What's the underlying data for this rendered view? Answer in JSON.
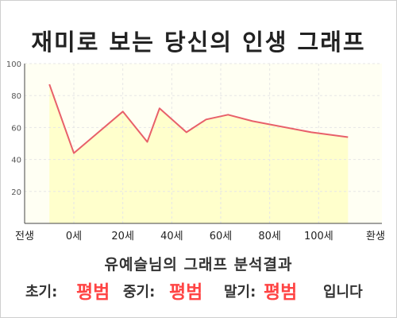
{
  "title": "재미로 보는 당신의 인생 그래프",
  "chart_data": {
    "type": "area",
    "x_labels": [
      "전생",
      "0세",
      "20세",
      "40세",
      "60세",
      "80세",
      "100세",
      "환생"
    ],
    "y_ticks": [
      20,
      40,
      60,
      80,
      100
    ],
    "ylim": [
      0,
      100
    ],
    "grid": true,
    "series": [
      {
        "points": [
          {
            "x": -10,
            "y": 87
          },
          {
            "x": 0,
            "y": 44
          },
          {
            "x": 20,
            "y": 70
          },
          {
            "x": 30,
            "y": 51
          },
          {
            "x": 35,
            "y": 72
          },
          {
            "x": 46,
            "y": 57
          },
          {
            "x": 54,
            "y": 65
          },
          {
            "x": 63,
            "y": 68
          },
          {
            "x": 73,
            "y": 64
          },
          {
            "x": 97,
            "y": 57
          },
          {
            "x": 112,
            "y": 54
          }
        ]
      }
    ],
    "colors": {
      "line": "#e8606a",
      "fill": "#ffffcc",
      "grid": "#e6e6e6"
    }
  },
  "result": {
    "title": "유예슬님의 그래프 분석결과",
    "early_label": "초기:",
    "early_value": "평범",
    "middle_label": "중기:",
    "middle_value": "평범",
    "late_label": "말기:",
    "late_value": "평범",
    "suffix": "입니다"
  }
}
